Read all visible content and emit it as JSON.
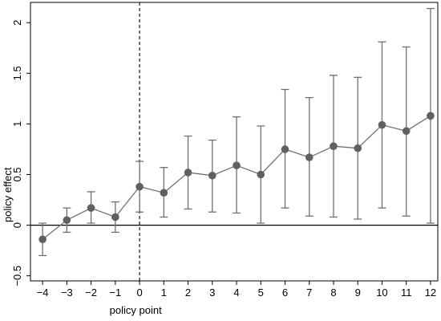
{
  "chart_data": {
    "type": "scatter",
    "title": "",
    "xlabel": "policy point",
    "ylabel": "policy effect",
    "x": [
      -4,
      -3,
      -2,
      -1,
      0,
      1,
      2,
      3,
      4,
      5,
      6,
      7,
      8,
      9,
      10,
      11,
      12
    ],
    "y": [
      -0.14,
      0.05,
      0.17,
      0.08,
      0.38,
      0.32,
      0.52,
      0.49,
      0.59,
      0.5,
      0.75,
      0.67,
      0.78,
      0.76,
      0.99,
      0.93,
      1.08
    ],
    "ci_low": [
      -0.3,
      -0.07,
      0.02,
      -0.07,
      0.13,
      0.08,
      0.16,
      0.13,
      0.12,
      0.02,
      0.17,
      0.09,
      0.08,
      0.06,
      0.17,
      0.09,
      0.02
    ],
    "ci_high": [
      0.02,
      0.17,
      0.33,
      0.23,
      0.63,
      0.57,
      0.88,
      0.84,
      1.07,
      0.98,
      1.34,
      1.26,
      1.48,
      1.46,
      1.81,
      1.76,
      2.14
    ],
    "xlim": [
      -4.5,
      12.3
    ],
    "ylim": [
      -0.55,
      2.2
    ],
    "xticks": [
      "−4",
      "−3",
      "−2",
      "−1",
      "0",
      "1",
      "2",
      "3",
      "4",
      "5",
      "6",
      "7",
      "8",
      "9",
      "10",
      "11",
      "12"
    ],
    "yticks": [
      "−0.5",
      "0",
      "0.5",
      "1",
      "1.5",
      "2"
    ],
    "ytick_values": [
      -0.5,
      0,
      0.5,
      1,
      1.5,
      2
    ],
    "reference_lines": {
      "horizontal_y": 0,
      "vertical_x": 0,
      "vertical_style": "dashed"
    },
    "grid": false,
    "legend": "none",
    "colors": {
      "series": "#707070",
      "errorbar": "#707070",
      "marker": "#606060",
      "axis": "#000000"
    }
  }
}
